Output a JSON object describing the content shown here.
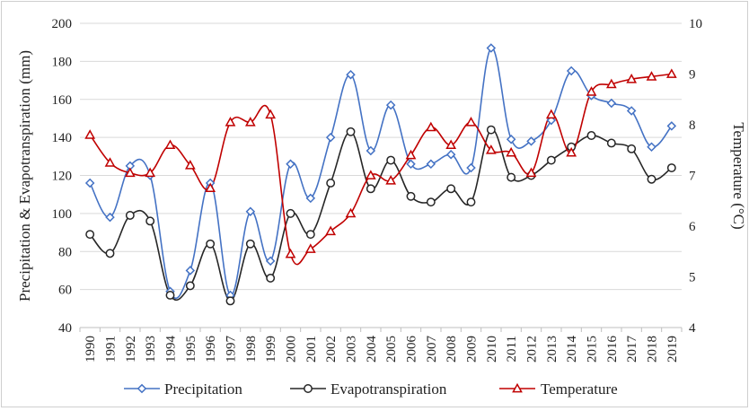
{
  "chart_data": {
    "type": "line",
    "title": "",
    "xlabel": "",
    "ylabel": "Precipitation & Evapotranspiration (mm)",
    "y2label": "Temperature (°C)",
    "ylim": [
      40,
      200
    ],
    "y2lim": [
      4,
      10
    ],
    "yticks": [
      40,
      60,
      80,
      100,
      120,
      140,
      160,
      180,
      200
    ],
    "y2ticks": [
      4,
      5,
      6,
      7,
      8,
      9,
      10
    ],
    "grid": "horizontal",
    "legend_position": "bottom",
    "x": [
      "1990",
      "1991",
      "1992",
      "1993",
      "1994",
      "1995",
      "1996",
      "1997",
      "1998",
      "1999",
      "2000",
      "2001",
      "2002",
      "2003",
      "2004",
      "2005",
      "2006",
      "2007",
      "2008",
      "2009",
      "2010",
      "2011",
      "2012",
      "2013",
      "2014",
      "2015",
      "2016",
      "2017",
      "2018",
      "2019"
    ],
    "series": [
      {
        "name": "Precipitation",
        "axis": "left",
        "color": "#4472C4",
        "marker": "diamond",
        "values": [
          116,
          98,
          125,
          120,
          59,
          70,
          116,
          57,
          101,
          75,
          126,
          108,
          140,
          173,
          133,
          157,
          126,
          126,
          131,
          124,
          187,
          139,
          138,
          149,
          175,
          162,
          158,
          154,
          135,
          146
        ]
      },
      {
        "name": "Evapotranspiration",
        "axis": "left",
        "color": "#262626",
        "marker": "circle",
        "values": [
          89,
          79,
          99,
          96,
          57,
          62,
          84,
          54,
          84,
          66,
          100,
          89,
          116,
          143,
          113,
          128,
          109,
          106,
          113,
          106,
          144,
          119,
          120,
          128,
          135,
          141,
          137,
          134,
          118,
          124
        ]
      },
      {
        "name": "Temperature",
        "axis": "right",
        "color": "#C00000",
        "marker": "triangle",
        "values": [
          7.8,
          7.25,
          7.05,
          7.05,
          7.6,
          7.2,
          6.75,
          8.05,
          8.05,
          8.2,
          5.45,
          5.55,
          5.9,
          6.25,
          7.0,
          6.9,
          7.4,
          7.95,
          7.6,
          8.05,
          7.5,
          7.45,
          7.05,
          8.2,
          7.45,
          8.65,
          8.8,
          8.9,
          8.95,
          9.0
        ]
      }
    ]
  }
}
